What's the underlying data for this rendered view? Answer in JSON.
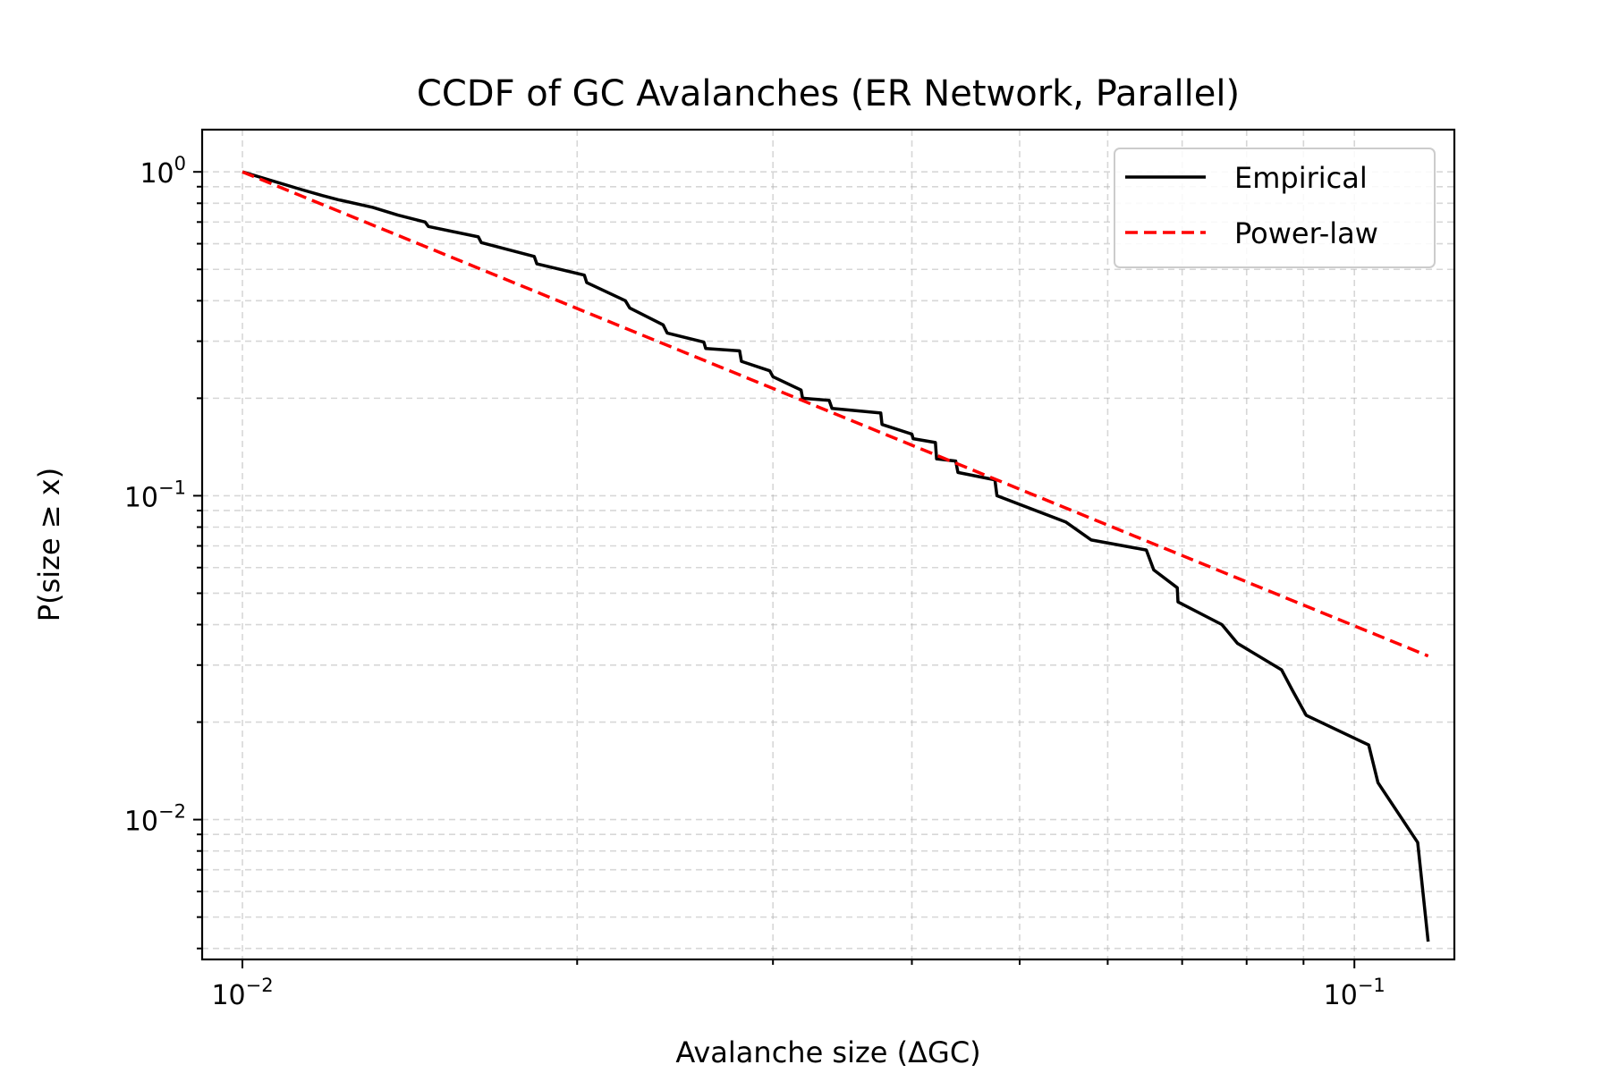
{
  "chart_data": {
    "type": "line",
    "title": "CCDF of GC Avalanches (ER Network, Parallel)",
    "xlabel": "Avalanche size (ΔGC)",
    "ylabel": "P(size ≥ x)",
    "xscale": "log",
    "yscale": "log",
    "xlim": [
      0.0092,
      0.123
    ],
    "ylim": [
      0.0037,
      1.35
    ],
    "grid": "both (major and minor, dashed)",
    "legend_position": "top-right",
    "x_ticks": [
      {
        "value": 0.01,
        "base": "10",
        "exp": "−2"
      },
      {
        "value": 0.1,
        "base": "10",
        "exp": "−1"
      }
    ],
    "y_ticks": [
      {
        "value": 1,
        "base": "10",
        "exp": "0"
      },
      {
        "value": 0.1,
        "base": "10",
        "exp": "−1"
      },
      {
        "value": 0.01,
        "base": "10",
        "exp": "−2"
      }
    ],
    "series": [
      {
        "name": "Empirical",
        "color": "#000000",
        "style": "solid",
        "points": [
          [
            0.01,
            1.0
          ],
          [
            0.0113,
            0.882
          ],
          [
            0.0118,
            0.845
          ],
          [
            0.0122,
            0.82
          ],
          [
            0.0131,
            0.777
          ],
          [
            0.0138,
            0.735
          ],
          [
            0.0146,
            0.7
          ],
          [
            0.0147,
            0.678
          ],
          [
            0.0163,
            0.63
          ],
          [
            0.0164,
            0.605
          ],
          [
            0.0183,
            0.548
          ],
          [
            0.0184,
            0.52
          ],
          [
            0.0203,
            0.48
          ],
          [
            0.0204,
            0.455
          ],
          [
            0.0221,
            0.4
          ],
          [
            0.0223,
            0.38
          ],
          [
            0.0239,
            0.337
          ],
          [
            0.0241,
            0.318
          ],
          [
            0.026,
            0.298
          ],
          [
            0.0261,
            0.285
          ],
          [
            0.028,
            0.28
          ],
          [
            0.0281,
            0.26
          ],
          [
            0.0298,
            0.243
          ],
          [
            0.03,
            0.233
          ],
          [
            0.0318,
            0.212
          ],
          [
            0.0319,
            0.2
          ],
          [
            0.0337,
            0.197
          ],
          [
            0.0339,
            0.186
          ],
          [
            0.0375,
            0.18
          ],
          [
            0.0376,
            0.166
          ],
          [
            0.04,
            0.155
          ],
          [
            0.0401,
            0.15
          ],
          [
            0.042,
            0.146
          ],
          [
            0.0421,
            0.13
          ],
          [
            0.0438,
            0.128
          ],
          [
            0.044,
            0.118
          ],
          [
            0.0475,
            0.112
          ],
          [
            0.0477,
            0.1
          ],
          [
            0.055,
            0.083
          ],
          [
            0.058,
            0.073
          ],
          [
            0.065,
            0.068
          ],
          [
            0.066,
            0.059
          ],
          [
            0.0693,
            0.052
          ],
          [
            0.0694,
            0.047
          ],
          [
            0.076,
            0.04
          ],
          [
            0.0785,
            0.035
          ],
          [
            0.086,
            0.029
          ],
          [
            0.088,
            0.025
          ],
          [
            0.0905,
            0.021
          ],
          [
            0.103,
            0.017
          ],
          [
            0.105,
            0.013
          ],
          [
            0.114,
            0.0085
          ],
          [
            0.1165,
            0.0042
          ]
        ]
      },
      {
        "name": "Power-law",
        "color": "#ff0000",
        "style": "dashed",
        "points": [
          [
            0.01,
            1.0
          ],
          [
            0.1165,
            0.032
          ]
        ]
      }
    ]
  }
}
